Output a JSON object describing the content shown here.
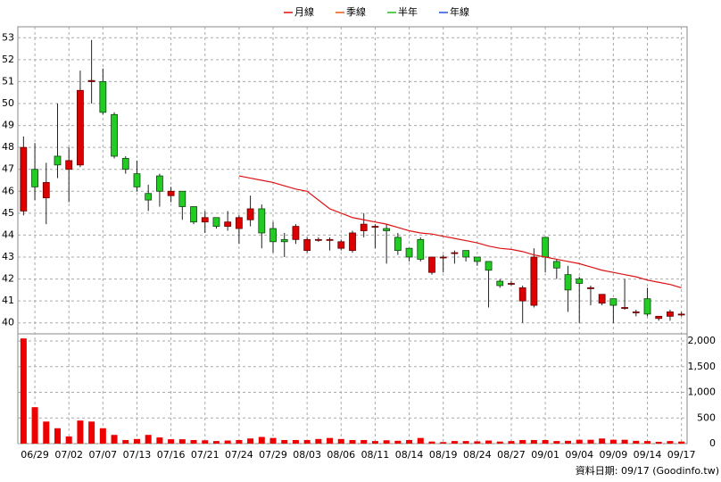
{
  "chart_data": [
    {
      "type": "candlestick",
      "series": [
        {
          "name": "月線",
          "color": "#dd1111",
          "values": [
            null,
            null,
            null,
            null,
            null,
            null,
            null,
            null,
            null,
            null,
            null,
            null,
            null,
            null,
            null,
            null,
            null,
            null,
            null,
            46.7,
            46.6,
            46.5,
            46.4,
            46.25,
            46.1,
            46.0,
            45.6,
            45.2,
            45.0,
            44.8,
            44.7,
            44.6,
            44.5,
            44.35,
            44.2,
            44.1,
            44.05,
            43.95,
            43.85,
            43.75,
            43.65,
            43.5,
            43.4,
            43.35,
            43.25,
            43.1,
            43.0,
            42.9,
            42.8,
            42.7,
            42.55,
            42.4,
            42.3,
            42.2,
            42.1,
            41.95,
            41.85,
            41.75,
            41.6
          ]
        },
        {
          "name": "季線",
          "color": "#ee5511",
          "values": [
            null,
            null,
            null,
            null,
            null,
            null,
            null,
            null,
            null,
            null,
            null,
            null,
            null,
            null,
            null,
            null,
            null,
            null,
            null,
            null,
            null,
            null,
            null,
            null,
            null,
            null,
            null,
            null,
            null,
            null,
            null,
            null,
            null,
            null,
            null,
            null,
            null,
            null,
            null,
            null,
            null,
            null,
            null,
            null,
            null,
            null,
            null,
            null,
            null,
            null,
            null,
            null,
            null,
            null,
            null,
            null,
            null,
            null,
            null
          ]
        },
        {
          "name": "半年",
          "color": "#22bb22",
          "values": [
            null,
            null,
            null,
            null,
            null,
            null,
            null,
            null,
            null,
            null,
            null,
            null,
            null,
            null,
            null,
            null,
            null,
            null,
            null,
            null,
            null,
            null,
            null,
            null,
            null,
            null,
            null,
            null,
            null,
            null,
            null,
            null,
            null,
            null,
            null,
            null,
            null,
            null,
            null,
            null,
            null,
            null,
            null,
            null,
            null,
            null,
            null,
            null,
            null,
            null,
            null,
            null,
            null,
            null,
            null,
            null,
            null,
            null,
            null
          ]
        },
        {
          "name": "年線",
          "color": "#2255dd",
          "values": [
            null,
            null,
            null,
            null,
            null,
            null,
            null,
            null,
            null,
            null,
            null,
            null,
            null,
            null,
            null,
            null,
            null,
            null,
            null,
            null,
            null,
            null,
            null,
            null,
            null,
            null,
            null,
            null,
            null,
            null,
            null,
            null,
            null,
            null,
            null,
            null,
            null,
            null,
            null,
            null,
            null,
            null,
            null,
            null,
            null,
            null,
            null,
            null,
            null,
            null,
            null,
            null,
            null,
            null,
            null,
            null,
            null,
            null,
            null
          ]
        }
      ],
      "open": [
        45.1,
        47.0,
        45.7,
        47.6,
        47.0,
        47.2,
        51.0,
        51.0,
        49.5,
        47.5,
        46.8,
        45.9,
        46.7,
        45.8,
        46.0,
        45.3,
        44.6,
        44.8,
        44.4,
        44.3,
        44.7,
        45.2,
        44.3,
        43.8,
        43.8,
        43.3,
        43.8,
        43.8,
        43.4,
        43.3,
        44.2,
        44.4,
        44.3,
        43.9,
        43.4,
        43.8,
        42.3,
        43.0,
        43.2,
        43.3,
        43.0,
        42.8,
        41.9,
        41.8,
        41.0,
        40.8,
        43.9,
        42.8,
        42.2,
        42.0,
        41.6,
        40.9,
        41.1,
        40.7,
        40.5,
        41.1,
        40.2,
        40.3,
        40.4
      ],
      "high": [
        48.5,
        48.2,
        47.3,
        50.0,
        48.0,
        51.5,
        52.9,
        51.6,
        49.6,
        47.6,
        47.4,
        46.3,
        46.8,
        46.2,
        46.0,
        45.3,
        45.1,
        44.8,
        45.1,
        44.9,
        45.8,
        45.4,
        44.6,
        44.1,
        44.5,
        43.9,
        43.9,
        43.9,
        43.8,
        44.2,
        45.0,
        44.5,
        44.5,
        44.1,
        43.4,
        43.9,
        43.0,
        43.1,
        43.3,
        43.3,
        43.0,
        42.8,
        42.0,
        41.9,
        41.7,
        43.4,
        43.9,
        42.9,
        42.6,
        42.1,
        41.7,
        41.3,
        41.1,
        42.0,
        40.6,
        41.6,
        40.3,
        40.6,
        40.5
      ],
      "low": [
        44.9,
        45.6,
        44.5,
        46.6,
        45.5,
        47.1,
        50.0,
        49.5,
        47.5,
        46.8,
        46.0,
        45.1,
        45.3,
        45.5,
        44.7,
        44.5,
        44.1,
        44.3,
        44.2,
        43.6,
        44.4,
        43.4,
        43.2,
        43.0,
        43.6,
        43.2,
        43.7,
        43.3,
        43.3,
        43.2,
        43.9,
        43.4,
        42.7,
        43.1,
        42.8,
        42.8,
        42.2,
        42.3,
        42.7,
        42.8,
        42.6,
        40.7,
        41.6,
        41.7,
        40.0,
        40.7,
        42.3,
        42.0,
        40.5,
        40.0,
        40.8,
        40.8,
        40.0,
        40.6,
        40.3,
        40.3,
        40.1,
        40.1,
        40.3
      ],
      "close": [
        48.0,
        46.2,
        46.4,
        47.2,
        47.4,
        50.6,
        51.05,
        49.6,
        47.6,
        47.0,
        46.2,
        45.6,
        46.0,
        46.0,
        45.3,
        44.6,
        44.8,
        44.4,
        44.6,
        44.8,
        45.2,
        44.1,
        43.7,
        43.7,
        44.4,
        43.8,
        43.8,
        43.8,
        43.7,
        44.1,
        44.5,
        44.4,
        44.2,
        43.3,
        43.0,
        42.9,
        43.0,
        43.0,
        43.2,
        43.0,
        42.8,
        42.4,
        41.7,
        41.8,
        41.6,
        43.0,
        43.0,
        42.5,
        41.5,
        41.8,
        41.6,
        41.3,
        40.8,
        40.7,
        40.5,
        40.4,
        40.3,
        40.5,
        40.4
      ],
      "up_color": "#dd0000",
      "down_color": "#22cc22",
      "ylim": [
        39.5,
        53.5
      ],
      "yticks": [
        40,
        41,
        42,
        43,
        44,
        45,
        46,
        47,
        48,
        49,
        50,
        51,
        52,
        53
      ],
      "grid": true,
      "legend": "top"
    },
    {
      "type": "bar",
      "categories": [
        null,
        "06/29",
        null,
        null,
        "07/02",
        null,
        null,
        "07/07",
        null,
        null,
        "07/13",
        null,
        null,
        "07/16",
        null,
        null,
        "07/21",
        null,
        null,
        "07/24",
        null,
        null,
        "07/29",
        null,
        null,
        "08/03",
        null,
        null,
        "08/06",
        null,
        null,
        "08/11",
        null,
        null,
        "08/14",
        null,
        null,
        "08/19",
        null,
        null,
        "08/24",
        null,
        null,
        "08/27",
        null,
        null,
        "09/01",
        null,
        null,
        "09/04",
        null,
        null,
        "09/09",
        null,
        null,
        "09/14",
        null,
        null,
        "09/17"
      ],
      "values": [
        2050,
        710,
        430,
        300,
        140,
        450,
        430,
        300,
        170,
        70,
        90,
        170,
        120,
        85,
        85,
        70,
        65,
        50,
        60,
        70,
        100,
        130,
        110,
        70,
        70,
        70,
        90,
        110,
        90,
        70,
        70,
        50,
        65,
        55,
        70,
        110,
        40,
        30,
        50,
        50,
        45,
        60,
        40,
        50,
        70,
        70,
        70,
        50,
        55,
        75,
        75,
        100,
        75,
        75,
        55,
        50,
        35,
        50,
        40
      ],
      "color": "#ee0000",
      "ylim": [
        0,
        2140
      ],
      "yticks": [
        0,
        500,
        {
          "value": 1000,
          "label": "1,000"
        },
        {
          "value": 1500,
          "label": "1,500"
        },
        {
          "value": 2000,
          "label": "2,000"
        }
      ],
      "grid": true,
      "note": "資料日期: 09/17  (Goodinfo.tw)"
    }
  ]
}
